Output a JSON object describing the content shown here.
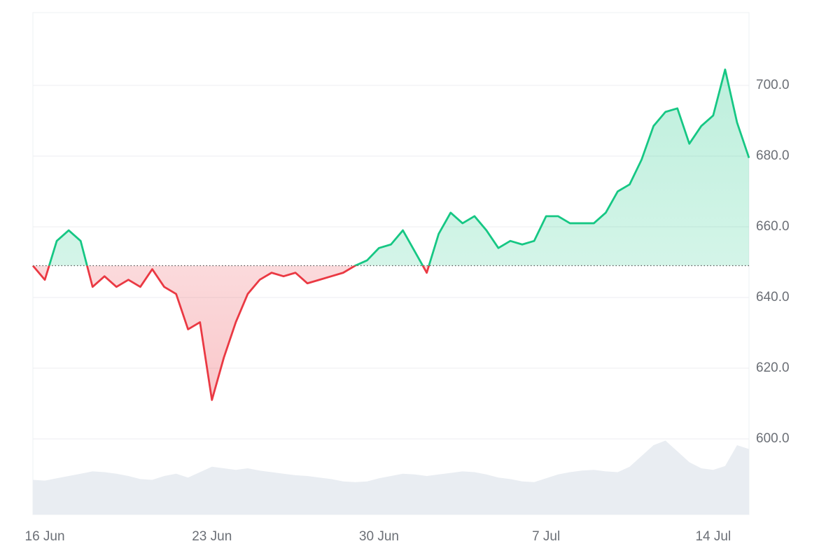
{
  "chart_data": {
    "type": "line",
    "values": [
      649,
      645,
      656,
      659,
      656,
      643,
      646,
      643,
      645,
      643,
      648,
      643,
      641,
      631,
      633,
      611,
      623,
      633,
      641,
      645,
      647,
      646,
      647,
      644,
      645,
      646,
      647,
      649,
      650.5,
      654,
      655,
      659,
      653,
      647,
      658,
      664,
      661,
      663,
      659,
      654,
      656,
      655,
      656,
      663,
      663,
      661,
      661,
      661,
      664,
      670,
      672,
      679,
      688.5,
      692.5,
      693.5,
      683.5,
      688.5,
      691.5,
      704.5,
      689.5,
      679.5
    ],
    "up_color": "#16c784",
    "down_color": "#ea3943",
    "volume": {
      "color": "#e9edf2",
      "ylim": [
        0,
        100
      ],
      "values": [
        45,
        44,
        47,
        50,
        53,
        56,
        55,
        53,
        50,
        46,
        45,
        50,
        53,
        48,
        55,
        62,
        60,
        58,
        60,
        57,
        55,
        53,
        51,
        50,
        48,
        46,
        43,
        42,
        43,
        47,
        50,
        53,
        52,
        50,
        52,
        54,
        56,
        55,
        52,
        48,
        46,
        43,
        42,
        47,
        52,
        55,
        57,
        58,
        56,
        55,
        62,
        76,
        90,
        96,
        82,
        68,
        60,
        58,
        63,
        90,
        85
      ]
    },
    "xlim": [
      0,
      60
    ],
    "xticks": [
      {
        "value": 1,
        "label": "16 Jun"
      },
      {
        "value": 15,
        "label": "23 Jun"
      },
      {
        "value": 29,
        "label": "30 Jun"
      },
      {
        "value": 43,
        "label": "7 Jul"
      },
      {
        "value": 57,
        "label": "14 Jul"
      }
    ],
    "ylim": [
      578.6,
      720.6
    ],
    "yticks": [
      {
        "value": 600,
        "label": "600.0"
      },
      {
        "value": 620,
        "label": "620.0"
      },
      {
        "value": 640,
        "label": "640.0"
      },
      {
        "value": 660,
        "label": "660.0"
      },
      {
        "value": 680,
        "label": "680.0"
      },
      {
        "value": 700,
        "label": "700.0"
      }
    ],
    "grid": true
  }
}
